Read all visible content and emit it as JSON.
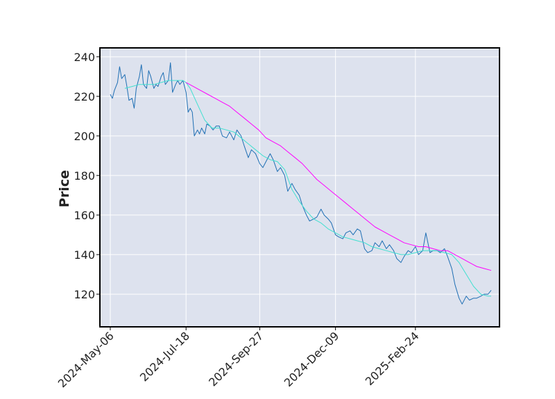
{
  "chart_data": {
    "type": "line",
    "title": "",
    "xlabel": "",
    "ylabel": "Price",
    "x_tick_labels": [
      "2024-May-06",
      "2024-Jul-18",
      "2024-Sep-27",
      "2024-Dec-09",
      "2025-Feb-24"
    ],
    "x_tick_dates": [
      "2024-05-06",
      "2024-07-18",
      "2024-09-27",
      "2024-12-09",
      "2025-02-24"
    ],
    "yticks": [
      120,
      140,
      160,
      180,
      200,
      220,
      240
    ],
    "xlim": [
      "2024-04-26",
      "2025-05-16"
    ],
    "ylim": [
      103.5,
      244.5
    ],
    "grid": true,
    "legend": "none",
    "colors": {
      "background": "#dde2ee",
      "grid": "#ffffff",
      "frame": "#000000",
      "series": [
        "#1f6fb4",
        "#40e0d0",
        "#ff00ff"
      ]
    },
    "series": [
      {
        "x": [
          "2024-05-06",
          "2024-05-08",
          "2024-05-10",
          "2024-05-13",
          "2024-05-15",
          "2024-05-17",
          "2024-05-20",
          "2024-05-22",
          "2024-05-24",
          "2024-05-27",
          "2024-05-29",
          "2024-05-31",
          "2024-06-03",
          "2024-06-05",
          "2024-06-07",
          "2024-06-10",
          "2024-06-12",
          "2024-06-14",
          "2024-06-17",
          "2024-06-19",
          "2024-06-21",
          "2024-06-24",
          "2024-06-26",
          "2024-06-28",
          "2024-07-01",
          "2024-07-03",
          "2024-07-05",
          "2024-07-08",
          "2024-07-10",
          "2024-07-12",
          "2024-07-15",
          "2024-07-18",
          "2024-07-20",
          "2024-07-22",
          "2024-07-24",
          "2024-07-26",
          "2024-07-29",
          "2024-07-31",
          "2024-08-02",
          "2024-08-05",
          "2024-08-07",
          "2024-08-10",
          "2024-08-13",
          "2024-08-16",
          "2024-08-19",
          "2024-08-22",
          "2024-08-26",
          "2024-08-29",
          "2024-09-02",
          "2024-09-05",
          "2024-09-09",
          "2024-09-12",
          "2024-09-16",
          "2024-09-19",
          "2024-09-23",
          "2024-09-27",
          "2024-09-30",
          "2024-10-03",
          "2024-10-07",
          "2024-10-10",
          "2024-10-14",
          "2024-10-17",
          "2024-10-21",
          "2024-10-24",
          "2024-10-28",
          "2024-10-31",
          "2024-11-04",
          "2024-11-07",
          "2024-11-11",
          "2024-11-14",
          "2024-11-18",
          "2024-11-21",
          "2024-11-25",
          "2024-11-28",
          "2024-12-02",
          "2024-12-05",
          "2024-12-09",
          "2024-12-12",
          "2024-12-16",
          "2024-12-19",
          "2024-12-23",
          "2024-12-26",
          "2024-12-30",
          "2025-01-02",
          "2025-01-06",
          "2025-01-09",
          "2025-01-13",
          "2025-01-16",
          "2025-01-20",
          "2025-01-23",
          "2025-01-27",
          "2025-01-30",
          "2025-02-03",
          "2025-02-06",
          "2025-02-10",
          "2025-02-13",
          "2025-02-17",
          "2025-02-20",
          "2025-02-24",
          "2025-02-27",
          "2025-03-03",
          "2025-03-06",
          "2025-03-10",
          "2025-03-13",
          "2025-03-17",
          "2025-03-20",
          "2025-03-24",
          "2025-03-27",
          "2025-03-31",
          "2025-04-03",
          "2025-04-07",
          "2025-04-10",
          "2025-04-14",
          "2025-04-17",
          "2025-04-21",
          "2025-04-24",
          "2025-04-28",
          "2025-05-01",
          "2025-05-05",
          "2025-05-08"
        ],
        "y": [
          221,
          219,
          223,
          227,
          235,
          229,
          231,
          225,
          218,
          219,
          214,
          224,
          230,
          236,
          226,
          224,
          233,
          230,
          224,
          226,
          225,
          230,
          232,
          226,
          228,
          237,
          222,
          226,
          228,
          226,
          228,
          222,
          212,
          214,
          212,
          200,
          203,
          201,
          204,
          201,
          206,
          205,
          203,
          205,
          205,
          200,
          199,
          202,
          198,
          203,
          200,
          195,
          189,
          193,
          191,
          186,
          184,
          187,
          191,
          188,
          182,
          184,
          180,
          172,
          176,
          173,
          170,
          165,
          160,
          157,
          158,
          159,
          163,
          160,
          158,
          156,
          150,
          149,
          148,
          151,
          152,
          150,
          153,
          152,
          143,
          141,
          142,
          146,
          144,
          147,
          143,
          145,
          142,
          138,
          136,
          139,
          142,
          141,
          144,
          140,
          142,
          151,
          141,
          142,
          142,
          141,
          143,
          139,
          133,
          125,
          118,
          115,
          119,
          117,
          118,
          118,
          119,
          120,
          120,
          122
        ]
      },
      {
        "x": [
          "2024-05-20",
          "2024-05-27",
          "2024-06-03",
          "2024-06-10",
          "2024-06-17",
          "2024-06-24",
          "2024-07-01",
          "2024-07-08",
          "2024-07-15",
          "2024-07-18",
          "2024-07-22",
          "2024-07-29",
          "2024-08-05",
          "2024-08-12",
          "2024-08-19",
          "2024-08-26",
          "2024-09-02",
          "2024-09-09",
          "2024-09-16",
          "2024-09-23",
          "2024-09-30",
          "2024-10-07",
          "2024-10-14",
          "2024-10-21",
          "2024-10-28",
          "2024-11-04",
          "2024-11-11",
          "2024-11-18",
          "2024-11-25",
          "2024-12-02",
          "2024-12-09",
          "2024-12-16",
          "2024-12-23",
          "2024-12-30",
          "2025-01-06",
          "2025-01-13",
          "2025-01-20",
          "2025-01-27",
          "2025-02-03",
          "2025-02-10",
          "2025-02-17",
          "2025-02-24",
          "2025-03-03",
          "2025-03-10",
          "2025-03-17",
          "2025-03-24",
          "2025-03-31",
          "2025-04-07",
          "2025-04-14",
          "2025-04-21",
          "2025-04-28",
          "2025-05-05",
          "2025-05-08"
        ],
        "y": [
          224,
          225,
          226,
          226,
          226,
          227,
          228,
          228,
          228,
          227,
          224,
          216,
          208,
          204,
          204,
          203,
          202,
          199,
          196,
          193,
          190,
          188,
          187,
          183,
          173,
          167,
          162,
          158,
          156,
          153,
          151,
          149,
          148,
          147,
          146,
          144,
          143,
          142,
          141,
          140,
          140,
          141,
          142,
          142,
          142,
          141,
          140,
          136,
          130,
          124,
          120,
          119,
          119
        ]
      },
      {
        "x": [
          "2024-07-18",
          "2024-07-25",
          "2024-08-01",
          "2024-08-08",
          "2024-08-15",
          "2024-08-22",
          "2024-08-29",
          "2024-09-05",
          "2024-09-12",
          "2024-09-19",
          "2024-09-26",
          "2024-10-03",
          "2024-10-10",
          "2024-10-17",
          "2024-10-24",
          "2024-10-31",
          "2024-11-07",
          "2024-11-14",
          "2024-11-21",
          "2024-11-28",
          "2024-12-05",
          "2024-12-12",
          "2024-12-19",
          "2024-12-26",
          "2025-01-02",
          "2025-01-09",
          "2025-01-16",
          "2025-01-23",
          "2025-01-30",
          "2025-02-06",
          "2025-02-13",
          "2025-02-20",
          "2025-02-27",
          "2025-03-06",
          "2025-03-13",
          "2025-03-20",
          "2025-03-27",
          "2025-04-03",
          "2025-04-10",
          "2025-04-17",
          "2025-04-24",
          "2025-05-01",
          "2025-05-08"
        ],
        "y": [
          227,
          225,
          223,
          221,
          219,
          217,
          215,
          212,
          209,
          206,
          203,
          199,
          197,
          195,
          192,
          189,
          186,
          182,
          178,
          175,
          172,
          169,
          166,
          163,
          160,
          157,
          154,
          152,
          150,
          148,
          146,
          145,
          144,
          144,
          143,
          142,
          142,
          140,
          138,
          136,
          134,
          133,
          132
        ]
      }
    ]
  }
}
